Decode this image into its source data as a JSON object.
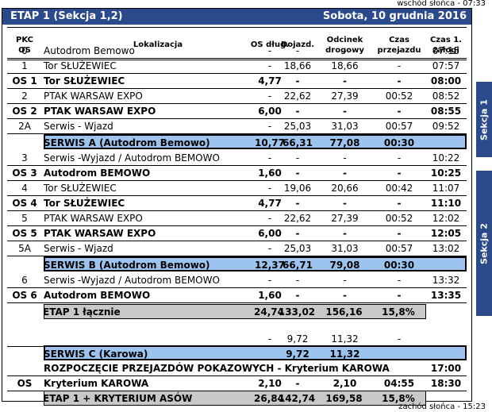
{
  "header": {
    "sunrise": "wschód słońca - 07:33",
    "sunset": "zachód słońca - 15:23",
    "title": "ETAP 1 (Sekcja 1,2)",
    "date": "Sobota, 10 grudnia 2016"
  },
  "columns": {
    "pkc": "PKC\nOS",
    "location": "Lokalizacja",
    "os_length": "OS dług.",
    "approach": "Dojazd.",
    "section": "Odcinek\ndrogowy",
    "time": "Czas\nprzejazdu",
    "first_car": "Czas 1.\nzałogi"
  },
  "sections": {
    "s1": "Sekcja 1",
    "s2": "Sekcja 2"
  },
  "rows": [
    {
      "pkc": "0",
      "loc": "Autodrom Bemowo",
      "os": "-",
      "doj": "-",
      "odc": "-",
      "czas": "-",
      "first": "07:15"
    },
    {
      "pkc": "1",
      "loc": "Tor SŁUŻEWIEC",
      "os": "-",
      "doj": "18,66",
      "odc": "18,66",
      "czas": "-",
      "first": "07:57"
    },
    {
      "pkc": "OS 1",
      "loc": "Tor SŁUŻEWIEC",
      "os": "4,77",
      "doj": "-",
      "odc": "-",
      "czas": "-",
      "first": "08:00"
    },
    {
      "pkc": "2",
      "loc": "PTAK WARSAW EXPO",
      "os": "-",
      "doj": "22,62",
      "odc": "27,39",
      "czas": "00:52",
      "first": "08:52"
    },
    {
      "pkc": "OS 2",
      "loc": "PTAK WARSAW EXPO",
      "os": "6,00",
      "doj": "-",
      "odc": "-",
      "czas": "-",
      "first": "08:55"
    },
    {
      "pkc": "2A",
      "loc": "Serwis - Wjazd",
      "os": "-",
      "doj": "25,03",
      "odc": "31,03",
      "czas": "00:57",
      "first": "09:52"
    },
    {
      "pkc": "",
      "loc": "SERWIS A (Autodrom Bemowo)",
      "os": "10,77",
      "doj": "66,31",
      "odc": "77,08",
      "czas": "00:30",
      "first": ""
    },
    {
      "pkc": "3",
      "loc": "Serwis -Wyjazd / Autodrom BEMOWO",
      "os": "-",
      "doj": "-",
      "odc": "-",
      "czas": "-",
      "first": "10:22"
    },
    {
      "pkc": "OS 3",
      "loc": "Autodrom BEMOWO",
      "os": "1,60",
      "doj": "-",
      "odc": "-",
      "czas": "-",
      "first": "10:25"
    },
    {
      "pkc": "4",
      "loc": "Tor SŁUŻEWIEC",
      "os": "-",
      "doj": "19,06",
      "odc": "20,66",
      "czas": "00:42",
      "first": "11:07"
    },
    {
      "pkc": "OS 4",
      "loc": "Tor SŁUŻEWIEC",
      "os": "4,77",
      "doj": "-",
      "odc": "-",
      "czas": "-",
      "first": "11:10"
    },
    {
      "pkc": "5",
      "loc": "PTAK WARSAW EXPO",
      "os": "-",
      "doj": "22,62",
      "odc": "27,39",
      "czas": "00:52",
      "first": "12:02"
    },
    {
      "pkc": "OS 5",
      "loc": "PTAK WARSAW EXPO",
      "os": "6,00",
      "doj": "-",
      "odc": "-",
      "czas": "-",
      "first": "12:05"
    },
    {
      "pkc": "5A",
      "loc": "Serwis - Wjazd",
      "os": "-",
      "doj": "25,03",
      "odc": "31,03",
      "czas": "00:57",
      "first": "13:02"
    },
    {
      "pkc": "",
      "loc": "SERWIS B (Autodrom Bemowo)",
      "os": "12,37",
      "doj": "66,71",
      "odc": "79,08",
      "czas": "00:30",
      "first": ""
    },
    {
      "pkc": "6",
      "loc": "Serwis -Wyjazd / Autodrom BEMOWO",
      "os": "-",
      "doj": "-",
      "odc": "-",
      "czas": "-",
      "first": "13:32"
    },
    {
      "pkc": "OS 6",
      "loc": "Autodrom BEMOWO",
      "os": "1,60",
      "doj": "-",
      "odc": "-",
      "czas": "-",
      "first": "13:35"
    },
    {
      "pkc": "",
      "loc": "ETAP 1 łącznie",
      "os": "24,74",
      "doj": "133,02",
      "odc": "156,16",
      "czas": "15,8%",
      "first": ""
    },
    {
      "pkc": "",
      "loc": "",
      "os": "-",
      "doj": "9,72",
      "odc": "11,32",
      "czas": "-",
      "first": ""
    },
    {
      "pkc": "",
      "loc": "SERWIS C (Karowa)",
      "os": "",
      "doj": "9,72",
      "odc": "11,32",
      "czas": "",
      "first": ""
    },
    {
      "pkc": "",
      "loc": "ROZPOCZĘCIE PRZEJAZDÓW POKAZOWYCH - Kryterium KAROWA",
      "os": "",
      "doj": "",
      "odc": "",
      "czas": "",
      "first": "17:00"
    },
    {
      "pkc": "OS",
      "loc": "Kryterium KAROWA",
      "os": "2,10",
      "doj": "-",
      "odc": "2,10",
      "czas": "04:55",
      "first": "18:30"
    },
    {
      "pkc": "",
      "loc": "ETAP 1 + KRYTERIUM ASÓW",
      "os": "26,84",
      "doj": "142,74",
      "odc": "169,58",
      "czas": "15,8%",
      "first": ""
    }
  ]
}
